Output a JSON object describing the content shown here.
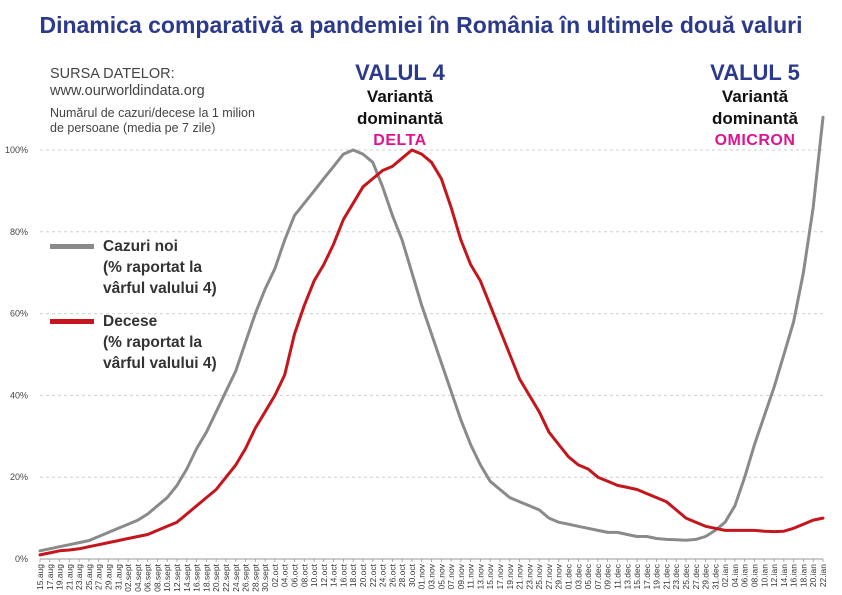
{
  "colors": {
    "cases": "#8a8a8a",
    "deaths": "#c4161c",
    "title": "#2b3a8c",
    "variant": "#e0148c"
  },
  "header": {
    "title": "Dinamica comparativă a pandemiei în România în ultimele două valuri",
    "source_label": "SURSA DATELOR:",
    "source_url": "www.ourworldindata.org",
    "note_line1": "Numărul de cazuri/decese la 1 milion",
    "note_line2": "de persoane (media pe 7 zile)"
  },
  "waves": [
    {
      "title": "VALUL 4",
      "line1": "Variantă",
      "line2": "dominantă",
      "variant": "DELTA"
    },
    {
      "title": "VALUL 5",
      "line1": "Variantă",
      "line2": "dominantă",
      "variant": "OMICRON"
    }
  ],
  "legend": {
    "cases": [
      "Cazuri noi",
      "(% raportat la",
      "vârful valului 4)"
    ],
    "deaths": [
      "Decese",
      "(% raportat la",
      "vârful valului 4)"
    ]
  },
  "chart_data": {
    "type": "line",
    "title": "Dinamica comparativă a pandemiei în România în ultimele două valuri",
    "y_ticks": [
      "0%",
      "20%",
      "40%",
      "60%",
      "80%",
      "100%"
    ],
    "ylim": [
      0,
      110
    ],
    "x_labels": [
      "15.aug",
      "17.aug",
      "19.aug",
      "21.aug",
      "23.aug",
      "25.aug",
      "27.aug",
      "29.aug",
      "31.aug",
      "02.sept",
      "04.sept",
      "06.sept",
      "08.sept",
      "10.sept",
      "12.sept",
      "14.sept",
      "16.sept",
      "18.sept",
      "20.sept",
      "22.sept",
      "24.sept",
      "26.sept",
      "28.sept",
      "30.sept",
      "02.oct",
      "04.oct",
      "06.oct",
      "08.oct",
      "10.oct",
      "12.oct",
      "14.oct",
      "16.oct",
      "18.oct",
      "20.oct",
      "22.oct",
      "24.oct",
      "26.oct",
      "28.oct",
      "30.oct",
      "01.nov",
      "03.nov",
      "05.nov",
      "07.nov",
      "09.nov",
      "11.nov",
      "13.nov",
      "15.nov",
      "17.nov",
      "19.nov",
      "21.nov",
      "23.nov",
      "25.nov",
      "27.nov",
      "29.nov",
      "01.dec",
      "03.dec",
      "05.dec",
      "07.dec",
      "09.dec",
      "11.dec",
      "13.dec",
      "15.dec",
      "17.dec",
      "19.dec",
      "21.dec",
      "23.dec",
      "25.dec",
      "27.dec",
      "29.dec",
      "31.dec",
      "02.ian",
      "04.ian",
      "06.ian",
      "08.ian",
      "10.ian",
      "12.ian",
      "14.ian",
      "16.ian",
      "18.ian",
      "20.ian",
      "22.ian"
    ],
    "series": [
      {
        "name": "Cazuri noi (% raportat la vârful valului 4)",
        "values": [
          2,
          2.5,
          3,
          3.5,
          4,
          4.5,
          5.5,
          6.5,
          7.5,
          8.5,
          9.5,
          11,
          13,
          15,
          18,
          22,
          27,
          31,
          36,
          41,
          46,
          53,
          60,
          66,
          71,
          78,
          84,
          87,
          90,
          93,
          96,
          99,
          100,
          99,
          97,
          91,
          84,
          78,
          70,
          62,
          55,
          48,
          41,
          34,
          28,
          23,
          19,
          17,
          15,
          14,
          13,
          12,
          10,
          9,
          8.5,
          8,
          7.5,
          7,
          6.5,
          6.5,
          6,
          5.5,
          5.5,
          5,
          4.8,
          4.7,
          4.6,
          4.8,
          5.5,
          7,
          9,
          13,
          20,
          28,
          35,
          42,
          50,
          58,
          70,
          86,
          108
        ]
      },
      {
        "name": "Decese (% raportat la vârful valului 4)",
        "values": [
          1,
          1.5,
          2,
          2.2,
          2.5,
          3,
          3.5,
          4,
          4.5,
          5,
          5.5,
          6,
          7,
          8,
          9,
          11,
          13,
          15,
          17,
          20,
          23,
          27,
          32,
          36,
          40,
          45,
          55,
          62,
          68,
          72,
          77,
          83,
          87,
          91,
          93,
          95,
          96,
          98,
          100,
          99,
          97,
          93,
          86,
          78,
          72,
          68,
          62,
          56,
          50,
          44,
          40,
          36,
          31,
          28,
          25,
          23,
          22,
          20,
          19,
          18,
          17.5,
          17,
          16,
          15,
          14,
          12,
          10,
          9,
          8,
          7.5,
          7,
          7,
          7,
          7,
          6.8,
          6.7,
          6.8,
          7.5,
          8.5,
          9.5,
          10
        ]
      }
    ]
  }
}
